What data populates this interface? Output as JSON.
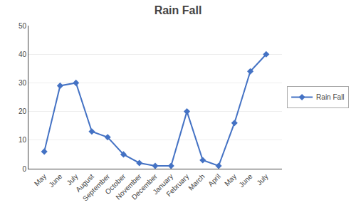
{
  "chart_data": {
    "type": "line",
    "title": "Rain Fall",
    "categories": [
      "May",
      "June",
      "July",
      "August",
      "September",
      "October",
      "November",
      "December",
      "January",
      "February",
      "March",
      "April",
      "May",
      "June",
      "July"
    ],
    "series": [
      {
        "name": "Rain Fall",
        "color": "#4472C4",
        "marker": "diamond",
        "values": [
          6,
          29,
          30,
          13,
          11,
          5,
          2,
          1,
          1,
          20,
          3,
          1,
          16,
          34,
          40
        ]
      }
    ],
    "ylim": [
      0,
      50
    ],
    "yticks": [
      0,
      10,
      20,
      30,
      40,
      50
    ],
    "grid": true,
    "legend": "right"
  }
}
